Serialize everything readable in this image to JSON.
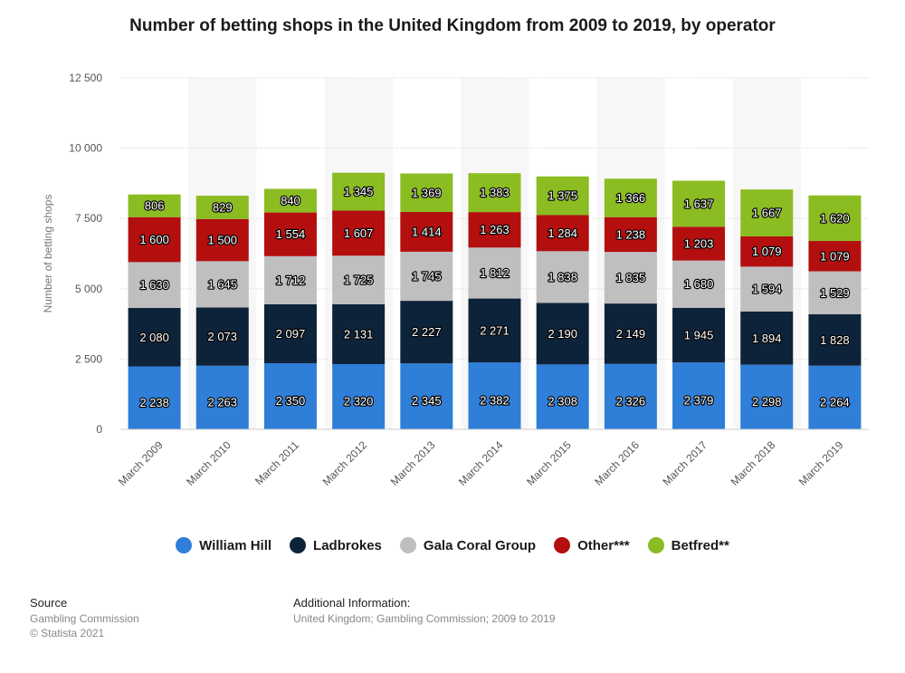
{
  "chart_data": {
    "type": "bar",
    "stacked": true,
    "title": "Number of betting shops in the United Kingdom from 2009 to 2019, by operator",
    "ylabel": "Number of betting shops",
    "xlabel": "",
    "ylim": [
      0,
      12500
    ],
    "yticks": [
      "0",
      "2 500",
      "5 000",
      "7 500",
      "10 000",
      "12 500"
    ],
    "ytick_values": [
      0,
      2500,
      5000,
      7500,
      10000,
      12500
    ],
    "categories": [
      "March 2009",
      "March 2010",
      "March 2011",
      "March 2012",
      "March 2013",
      "March 2014",
      "March 2015",
      "March 2016",
      "March 2017",
      "March 2018",
      "March 2019"
    ],
    "grid": true,
    "legend_position": "bottom",
    "series": [
      {
        "name": "William Hill",
        "color": "#2f7ed8",
        "values": [
          2238,
          2263,
          2350,
          2320,
          2345,
          2382,
          2308,
          2326,
          2379,
          2298,
          2264
        ],
        "labels": [
          "2 238",
          "2 263",
          "2 350",
          "2 320",
          "2 345",
          "2 382",
          "2 308",
          "2 326",
          "2 379",
          "2 298",
          "2 264"
        ]
      },
      {
        "name": "Ladbrokes",
        "color": "#0d233a",
        "values": [
          2080,
          2073,
          2097,
          2131,
          2227,
          2271,
          2190,
          2149,
          1945,
          1894,
          1828
        ],
        "labels": [
          "2 080",
          "2 073",
          "2 097",
          "2 131",
          "2 227",
          "2 271",
          "2 190",
          "2 149",
          "1 945",
          "1 894",
          "1 828"
        ]
      },
      {
        "name": "Gala Coral Group",
        "color": "#bfbfbf",
        "values": [
          1630,
          1645,
          1712,
          1725,
          1745,
          1812,
          1838,
          1835,
          1680,
          1594,
          1529
        ],
        "labels": [
          "1 630",
          "1 645",
          "1 712",
          "1 725",
          "1 745",
          "1 812",
          "1 838",
          "1 835",
          "1 680",
          "1 594",
          "1 529"
        ]
      },
      {
        "name": "Other***",
        "color": "#b30f0f",
        "values": [
          1600,
          1500,
          1554,
          1607,
          1414,
          1263,
          1284,
          1238,
          1203,
          1079,
          1079
        ],
        "labels": [
          "1 600",
          "1 500",
          "1 554",
          "1 607",
          "1 414",
          "1 263",
          "1 284",
          "1 238",
          "1 203",
          "1 079",
          "1 079"
        ]
      },
      {
        "name": "Betfred**",
        "color": "#8bbc21",
        "values": [
          806,
          829,
          840,
          1345,
          1369,
          1383,
          1375,
          1366,
          1637,
          1667,
          1620
        ],
        "labels": [
          "806",
          "829",
          "840",
          "1 345",
          "1 369",
          "1 383",
          "1 375",
          "1 366",
          "1 637",
          "1 667",
          "1 620"
        ]
      }
    ]
  },
  "footer": {
    "source_heading": "Source",
    "source_line1": "Gambling Commission",
    "source_line2": "© Statista 2021",
    "info_heading": "Additional Information:",
    "info_text": "United Kingdom; Gambling Commission; 2009 to 2019"
  }
}
